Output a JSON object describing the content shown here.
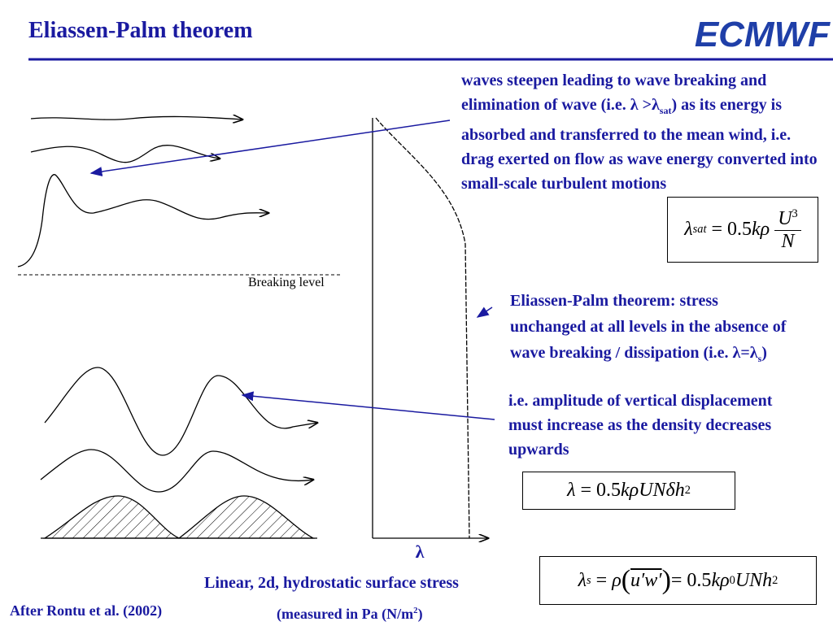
{
  "header": {
    "title": "Eliassen-Palm theorem",
    "logo": "ECMWF"
  },
  "figure": {
    "breaking_level": "Breaking level",
    "axis_label": "λ"
  },
  "notes": {
    "breaking": [
      "waves steepen leading to wave breaking and elimination of wave (i.e. λ >λ",
      "sat",
      ") as its energy is absorbed and transferred to the mean wind, i.e.  drag exerted on flow as wave energy converted into small-scale turbulent motions"
    ],
    "theorem": [
      "Eliassen-Palm theorem: stress unchanged at all levels in the absence of wave breaking / dissipation (i.e. λ=λ",
      "s",
      ")"
    ],
    "amplitude": "i.e. amplitude of vertical displacement must increase as the density decreases upwards"
  },
  "formulas": {
    "saturation": {
      "lhs": "λ",
      "sub": "sat",
      "eq": "= 0.5",
      "body": "kρ",
      "num": "U",
      "num_sup": "3",
      "den": "N"
    },
    "stress": {
      "lhs": "λ",
      "eq": "= 0.5",
      "body": "kρUNδh",
      "sup": "2"
    },
    "surface": {
      "lhs": "λ",
      "sub": "s",
      "eq1": "=",
      "rho": "ρ",
      "corr": "u′w′",
      "eq2": "= 0.5",
      "body": "kρ",
      "body_sub": "0",
      "tail": "UNh",
      "sup": "2"
    }
  },
  "footer": {
    "caption": "Linear, 2d, hydrostatic surface stress",
    "source": "After Rontu et al. (2002)",
    "units": [
      "(measured in Pa (N/m",
      "2",
      ")"
    ]
  }
}
